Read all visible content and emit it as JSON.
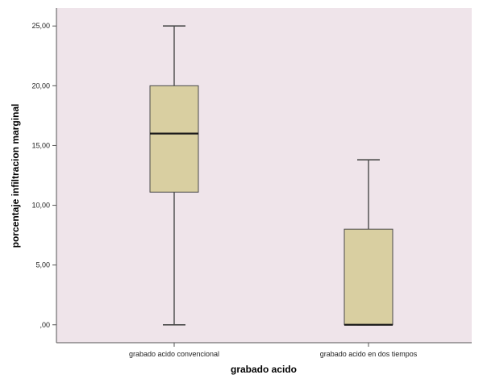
{
  "chart_data": {
    "type": "box",
    "xlabel": "grabado acido",
    "ylabel": "porcentaje infiltracion marginal",
    "ylim": [
      -1.5,
      26.5
    ],
    "yticks": [
      0,
      5,
      10,
      15,
      20,
      25
    ],
    "ytick_labels": [
      ",00",
      "5,00",
      "10,00",
      "15,00",
      "20,00",
      "25,00"
    ],
    "categories": [
      "grabado acido convencional",
      "grabado acido en dos tiempos"
    ],
    "boxes": [
      {
        "category": "grabado acido convencional",
        "min": 0,
        "q1": 11.1,
        "median": 16.0,
        "q3": 20.0,
        "max": 25.0
      },
      {
        "category": "grabado acido en dos tiempos",
        "min": 0,
        "q1": 0,
        "median": 0,
        "q3": 8.0,
        "max": 13.8
      }
    ],
    "grid": false,
    "legend": "none"
  },
  "colors": {
    "plot_background": "#efe4ea",
    "box_fill": "#d9cfa1",
    "box_stroke": "#4a4a4a",
    "median_line": "#1a1a1a",
    "axis": "#555555"
  }
}
